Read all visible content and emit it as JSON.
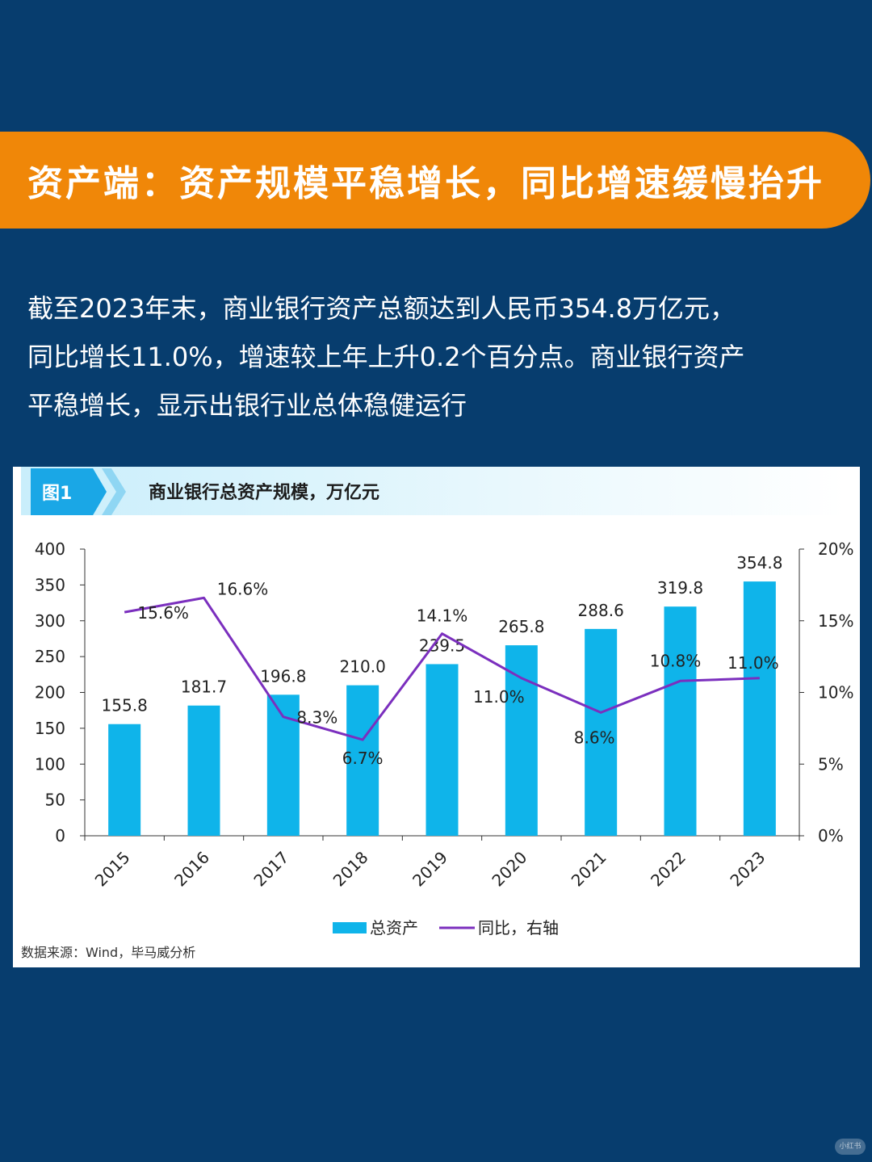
{
  "banner": {
    "title": "资产端：资产规模平稳增长，同比增速缓慢抬升"
  },
  "intro": {
    "lines": [
      "截至2023年末，商业银行资产总额达到人民币354.8万亿元，",
      "同比增长11.0%，增速较上年上升0.2个百分点。商业银行资产",
      "平稳增长，显示出银行业总体稳健运行"
    ]
  },
  "figure": {
    "tag": "图1",
    "title": "商业银行总资产规模，万亿元",
    "source": "数据来源：Wind，毕马威分析"
  },
  "watermark": "小红书",
  "colors": {
    "background": "#073d6e",
    "banner": "#f08708",
    "bar": "#0fb4ea",
    "line": "#7b2fbe"
  },
  "chart_data": {
    "type": "bar",
    "categories": [
      "2015",
      "2016",
      "2017",
      "2018",
      "2019",
      "2020",
      "2021",
      "2022",
      "2023"
    ],
    "series": [
      {
        "name": "总资产",
        "type": "bar",
        "axis": "left",
        "values": [
          155.8,
          181.7,
          196.8,
          210.0,
          239.5,
          265.8,
          288.6,
          319.8,
          354.8
        ],
        "labels": [
          "155.8",
          "181.7",
          "196.8",
          "210.0",
          "239.5",
          "265.8",
          "288.6",
          "319.8",
          "354.8"
        ]
      },
      {
        "name": "同比，右轴",
        "type": "line",
        "axis": "right",
        "values": [
          15.6,
          16.6,
          8.3,
          6.7,
          14.1,
          11.0,
          8.6,
          10.8,
          11.0
        ],
        "labels": [
          "15.6%",
          "16.6%",
          "8.3%",
          "6.7%",
          "14.1%",
          "11.0%",
          "8.6%",
          "10.8%",
          "11.0%"
        ]
      }
    ],
    "y_left": {
      "range": [
        0,
        400
      ],
      "ticks": [
        "0",
        "50",
        "100",
        "150",
        "200",
        "250",
        "300",
        "350",
        "400"
      ]
    },
    "y_right": {
      "range": [
        0,
        20
      ],
      "ticks": [
        "0%",
        "5%",
        "10%",
        "15%",
        "20%"
      ]
    },
    "grid": false,
    "legend_position": "bottom"
  }
}
